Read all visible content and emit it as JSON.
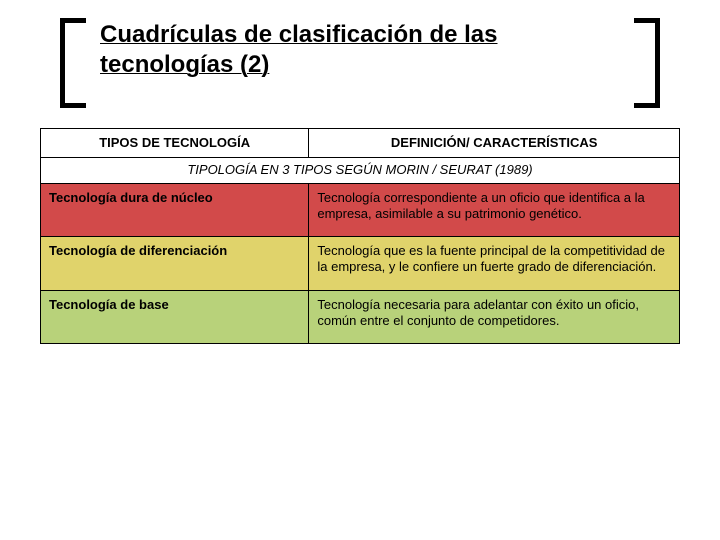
{
  "title": "Cuadrículas de clasificación de las tecnologías (2)",
  "colors": {
    "row1_bg": "#d24a4a",
    "row2_bg": "#e0d36b",
    "row3_bg": "#b8d27a",
    "border": "#000000",
    "header_bg": "#ffffff"
  },
  "table": {
    "header": {
      "col_type": "TIPOS DE TECNOLOGÍA",
      "col_def": "DEFINICIÓN/ CARACTERÍSTICAS"
    },
    "section": "TIPOLOGÍA EN 3 TIPOS SEGÚN MORIN / SEURAT (1989)",
    "rows": [
      {
        "type": "Tecnología dura de núcleo",
        "def": "Tecnología correspondiente a un oficio que identifica a la empresa, asimilable a su patrimonio genético."
      },
      {
        "type": "Tecnología de diferenciación",
        "def": "Tecnología que es la fuente principal de la competitividad de la empresa, y le confiere un fuerte grado de diferenciación."
      },
      {
        "type": "Tecnología de base",
        "def": "Tecnología necesaria para adelantar con éxito un oficio, común entre el conjunto de competidores."
      }
    ]
  }
}
